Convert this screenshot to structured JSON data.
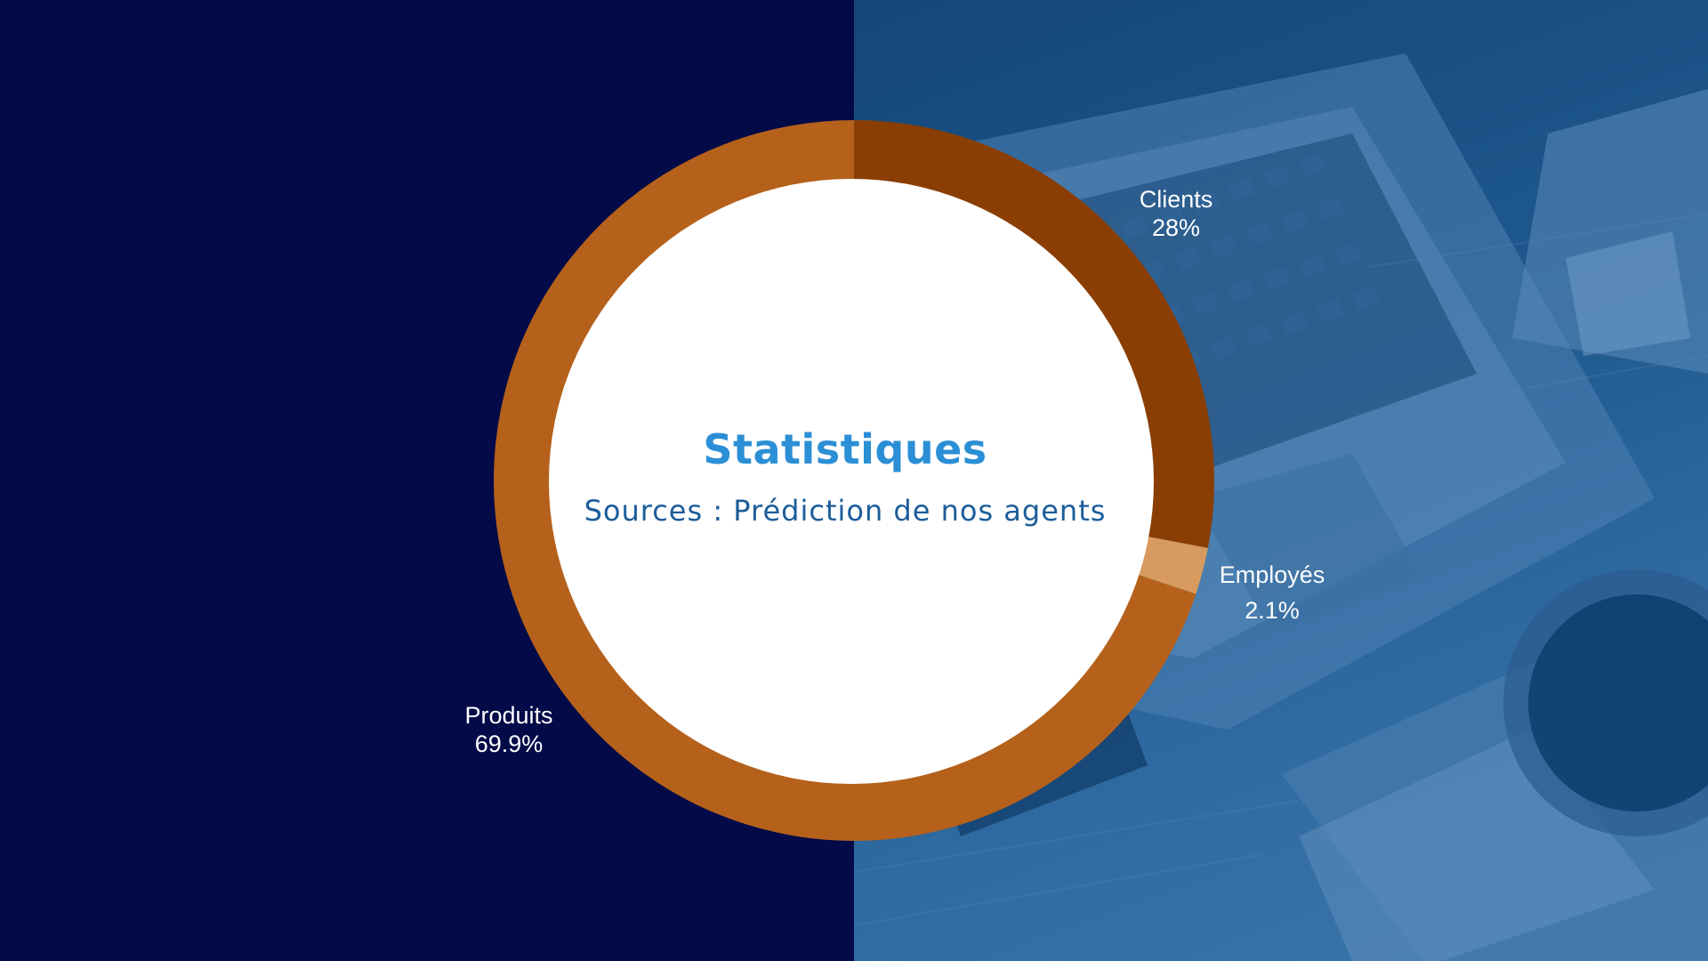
{
  "chart_data": {
    "type": "pie",
    "style": "donut",
    "title": "Statistiques",
    "subtitle": "Sources : Prédiction de nos agents",
    "series": [
      {
        "name": "Clients",
        "value": 28,
        "label": "28%",
        "color": "#8a3e04"
      },
      {
        "name": "Employés",
        "value": 2.1,
        "label": "2.1%",
        "color": "#d79a5f"
      },
      {
        "name": "Produits",
        "value": 69.9,
        "label": "69.9%",
        "color": "#b5611b"
      }
    ],
    "start_angle_deg": 0,
    "direction": "clockwise",
    "legend": "none",
    "labels": "outside"
  },
  "colors": {
    "left_background": "#020a47",
    "right_background": "#1f5a8f",
    "center_fill": "#ffffff",
    "title_color": "#2b8fd6",
    "subtitle_color": "#1c5d9a",
    "label_color": "#ffffff"
  }
}
